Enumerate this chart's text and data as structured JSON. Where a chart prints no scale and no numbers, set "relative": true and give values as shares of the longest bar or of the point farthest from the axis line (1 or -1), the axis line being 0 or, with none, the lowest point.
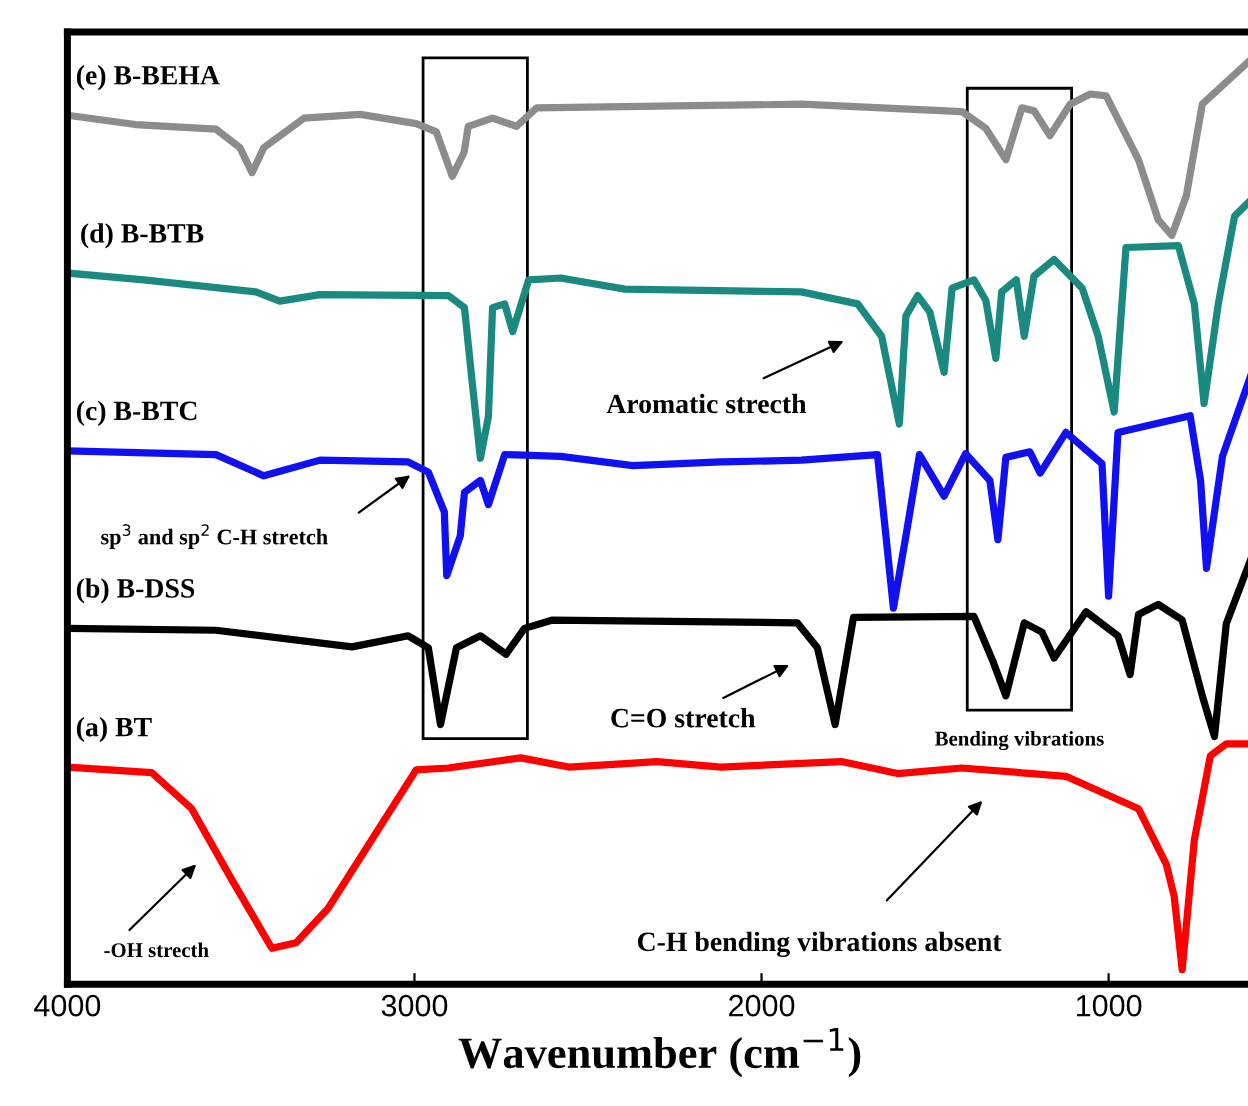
{
  "chart_data": {
    "type": "line",
    "relative": true,
    "xlabel": "Wavenumber (cm$^{−1}$)",
    "xlim": [
      4000,
      584
    ],
    "xticks": [
      4000,
      3000,
      2000,
      1000
    ],
    "grid": false,
    "line_style": "solid",
    "series": [
      {
        "name": "(e) B-BEHA",
        "color": "#8c8c8c",
        "x": [
          4000,
          3804,
          3572,
          3503,
          3468,
          3434,
          3318,
          3156,
          2995,
          2937,
          2891,
          2857,
          2845,
          2775,
          2706,
          2648,
          1885,
          1423,
          1354,
          1296,
          1250,
          1215,
          1169,
          1111,
          1053,
          1007,
          914,
          857,
          818,
          776,
          730,
          591
        ],
        "values": [
          0.94,
          0.93,
          0.925,
          0.905,
          0.878,
          0.905,
          0.937,
          0.941,
          0.931,
          0.922,
          0.874,
          0.9,
          0.928,
          0.937,
          0.928,
          0.948,
          0.952,
          0.944,
          0.926,
          0.892,
          0.948,
          0.945,
          0.918,
          0.952,
          0.963,
          0.961,
          0.892,
          0.827,
          0.81,
          0.853,
          0.952,
          1.0
        ]
      },
      {
        "name": "(d) B-BTB",
        "color": "#1a8a80",
        "x": [
          3988,
          3780,
          3457,
          3388,
          3272,
          2902,
          2856,
          2833,
          2810,
          2787,
          2775,
          2740,
          2717,
          2671,
          2579,
          2394,
          1885,
          1723,
          1654,
          1603,
          1584,
          1550,
          1515,
          1474,
          1451,
          1388,
          1354,
          1325,
          1308,
          1266,
          1243,
          1215,
          1157,
          1076,
          1030,
          984,
          950,
          799,
          753,
          725,
          684,
          637,
          591
        ],
        "values": [
          0.769,
          0.762,
          0.749,
          0.739,
          0.746,
          0.745,
          0.732,
          0.649,
          0.569,
          0.614,
          0.732,
          0.736,
          0.706,
          0.762,
          0.764,
          0.752,
          0.749,
          0.736,
          0.701,
          0.606,
          0.723,
          0.745,
          0.727,
          0.662,
          0.753,
          0.762,
          0.74,
          0.677,
          0.749,
          0.762,
          0.701,
          0.766,
          0.784,
          0.753,
          0.701,
          0.619,
          0.797,
          0.799,
          0.736,
          0.628,
          0.736,
          0.831,
          0.848
        ]
      },
      {
        "name": "(c) B-BTC",
        "color": "#1010f0",
        "x": [
          4000,
          3572,
          3434,
          3272,
          3018,
          2960,
          2914,
          2907,
          2868,
          2856,
          2810,
          2787,
          2740,
          2579,
          2371,
          2117,
          1885,
          1666,
          1620,
          1584,
          1545,
          1474,
          1412,
          1342,
          1319,
          1296,
          1227,
          1197,
          1123,
          1019,
          1000,
          973,
          765,
          735,
          718,
          672,
          591
        ],
        "values": [
          0.577,
          0.573,
          0.55,
          0.567,
          0.565,
          0.554,
          0.511,
          0.442,
          0.485,
          0.532,
          0.545,
          0.519,
          0.573,
          0.571,
          0.561,
          0.565,
          0.567,
          0.573,
          0.407,
          0.485,
          0.573,
          0.528,
          0.574,
          0.545,
          0.481,
          0.57,
          0.576,
          0.553,
          0.597,
          0.563,
          0.42,
          0.597,
          0.615,
          0.545,
          0.45,
          0.571,
          0.658
        ]
      },
      {
        "name": "(b) B-DSS",
        "color": "#000000",
        "x": [
          4000,
          3572,
          3180,
          3018,
          2960,
          2925,
          2879,
          2810,
          2736,
          2683,
          2602,
          1897,
          1839,
          1788,
          1735,
          1388,
          1335,
          1296,
          1243,
          1192,
          1157,
          1065,
          973,
          938,
          914,
          857,
          788,
          730,
          695,
          661,
          591
        ],
        "values": [
          0.385,
          0.383,
          0.365,
          0.377,
          0.364,
          0.281,
          0.364,
          0.377,
          0.357,
          0.385,
          0.394,
          0.391,
          0.364,
          0.281,
          0.397,
          0.398,
          0.351,
          0.312,
          0.391,
          0.381,
          0.353,
          0.403,
          0.377,
          0.335,
          0.4,
          0.411,
          0.394,
          0.312,
          0.268,
          0.39,
          0.459
        ]
      },
      {
        "name": "(a) BT",
        "color": "#ff0000",
        "x": [
          4000,
          3757,
          3642,
          3526,
          3411,
          3341,
          3249,
          2995,
          2903,
          2694,
          2556,
          2301,
          2117,
          1770,
          1608,
          1423,
          1123,
          914,
          834,
          811,
          788,
          753,
          707,
          661,
          591
        ],
        "values": [
          0.235,
          0.229,
          0.19,
          0.113,
          0.039,
          0.045,
          0.082,
          0.232,
          0.234,
          0.245,
          0.235,
          0.241,
          0.235,
          0.241,
          0.228,
          0.234,
          0.225,
          0.19,
          0.13,
          0.095,
          0.016,
          0.156,
          0.247,
          0.26,
          0.26
        ]
      }
    ],
    "annotations": [
      "Aromatic strecth",
      "sp$^{3}$ and sp$^{2}$ C-H stretch",
      "C=O stretch",
      "Bending vibrations",
      "-OH strecth",
      "C-H bending vibrations absent"
    ]
  }
}
